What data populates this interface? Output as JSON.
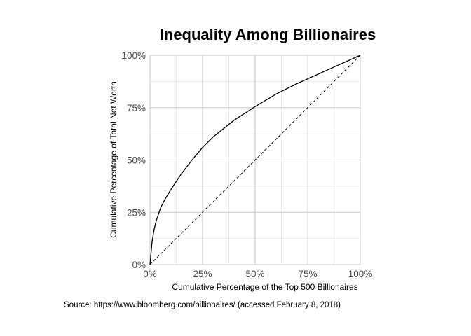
{
  "chart_data": {
    "type": "line",
    "title": "Inequality Among Billionaires",
    "xlabel": "Cumulative Percentage of the Top 500 Billionaires",
    "ylabel": "Cumulative Percentage of Total Net Worth",
    "caption": "Source: https://www.bloomberg.com/billionaires/ (accessed February 8, 2018)",
    "xlim": [
      0,
      1
    ],
    "ylim": [
      0,
      1
    ],
    "x_ticks": [
      0,
      0.25,
      0.5,
      0.75,
      1
    ],
    "x_tick_labels": [
      "0%",
      "25%",
      "50%",
      "75%",
      "100%"
    ],
    "y_ticks": [
      0,
      0.25,
      0.5,
      0.75,
      1
    ],
    "y_tick_labels": [
      "0%",
      "25%",
      "50%",
      "75%",
      "100%"
    ],
    "grid": true,
    "series": [
      {
        "style": "solid",
        "color": "#000000",
        "x": [
          0,
          0.01,
          0.02,
          0.03,
          0.05,
          0.07,
          0.1,
          0.15,
          0.2,
          0.25,
          0.3,
          0.4,
          0.5,
          0.6,
          0.7,
          0.8,
          0.9,
          1.0
        ],
        "y": [
          0,
          0.11,
          0.17,
          0.21,
          0.27,
          0.31,
          0.36,
          0.435,
          0.5,
          0.56,
          0.61,
          0.69,
          0.755,
          0.815,
          0.865,
          0.91,
          0.955,
          1.0
        ]
      },
      {
        "style": "dashed",
        "color": "#000000",
        "x": [
          0,
          1
        ],
        "y": [
          0,
          1
        ]
      }
    ]
  }
}
